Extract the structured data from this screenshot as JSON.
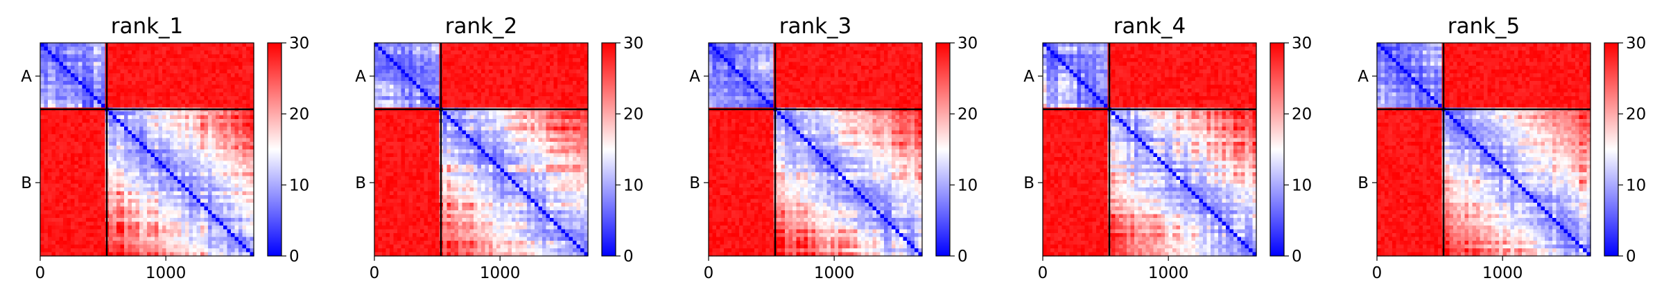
{
  "chart_data": [
    {
      "type": "heatmap",
      "title": "rank_1",
      "x_ticks": [
        0,
        1000
      ],
      "y_tick_labels": [
        "A",
        "B"
      ],
      "chain_lengths": {
        "A": 530,
        "B": 1170
      },
      "xlim": [
        0,
        1700
      ],
      "colorbar": {
        "ticks": [
          0,
          10,
          20,
          30
        ],
        "range": [
          0,
          30
        ],
        "colormap": "bwr"
      },
      "grid": false,
      "seed": 11
    },
    {
      "type": "heatmap",
      "title": "rank_2",
      "x_ticks": [
        0,
        1000
      ],
      "y_tick_labels": [
        "A",
        "B"
      ],
      "chain_lengths": {
        "A": 530,
        "B": 1170
      },
      "xlim": [
        0,
        1700
      ],
      "colorbar": {
        "ticks": [
          0,
          10,
          20,
          30
        ],
        "range": [
          0,
          30
        ],
        "colormap": "bwr"
      },
      "grid": false,
      "seed": 23
    },
    {
      "type": "heatmap",
      "title": "rank_3",
      "x_ticks": [
        0,
        1000
      ],
      "y_tick_labels": [
        "A",
        "B"
      ],
      "chain_lengths": {
        "A": 530,
        "B": 1170
      },
      "xlim": [
        0,
        1700
      ],
      "colorbar": {
        "ticks": [
          0,
          10,
          20,
          30
        ],
        "range": [
          0,
          30
        ],
        "colormap": "bwr"
      },
      "grid": false,
      "seed": 37
    },
    {
      "type": "heatmap",
      "title": "rank_4",
      "x_ticks": [
        0,
        1000
      ],
      "y_tick_labels": [
        "A",
        "B"
      ],
      "chain_lengths": {
        "A": 530,
        "B": 1170
      },
      "xlim": [
        0,
        1700
      ],
      "colorbar": {
        "ticks": [
          0,
          10,
          20,
          30
        ],
        "range": [
          0,
          30
        ],
        "colormap": "bwr"
      },
      "grid": false,
      "seed": 41
    },
    {
      "type": "heatmap",
      "title": "rank_5",
      "x_ticks": [
        0,
        1000
      ],
      "y_tick_labels": [
        "A",
        "B"
      ],
      "chain_lengths": {
        "A": 530,
        "B": 1170
      },
      "xlim": [
        0,
        1700
      ],
      "colorbar": {
        "ticks": [
          0,
          10,
          20,
          30
        ],
        "range": [
          0,
          30
        ],
        "colormap": "bwr"
      },
      "grid": false,
      "seed": 53
    }
  ],
  "colors": {
    "low": "#0000ff",
    "mid": "#ffffff",
    "high": "#ff0000",
    "boundary": "#000000"
  }
}
